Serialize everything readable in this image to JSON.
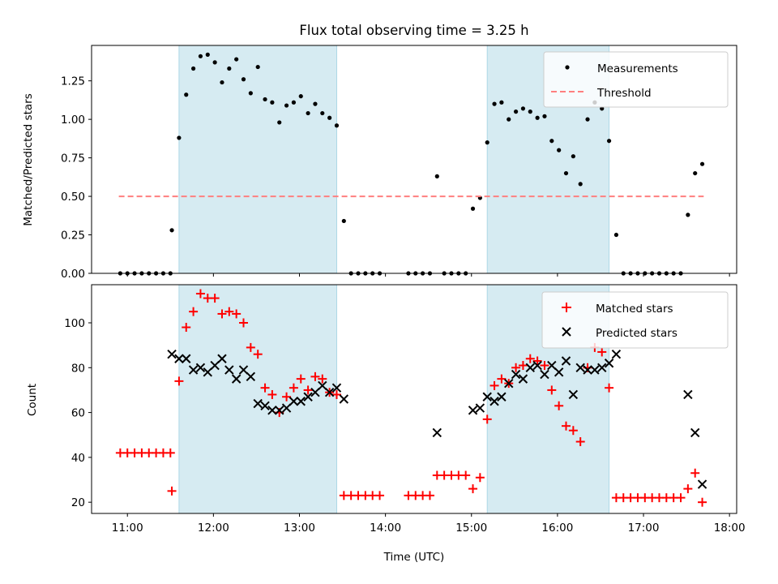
{
  "chart_data": [
    {
      "type": "scatter",
      "title": "Flux total observing time = 3.25 h",
      "xlabel": "",
      "ylabel": "Matched/Predicted stars",
      "xlim": [
        "10:35",
        "18:05"
      ],
      "ylim": [
        0,
        1.48
      ],
      "yticks": [
        "0.00",
        "0.25",
        "0.50",
        "0.75",
        "1.00",
        "1.25"
      ],
      "shaded_intervals": [
        [
          "11:36",
          "13:26"
        ],
        [
          "15:11",
          "16:36"
        ]
      ],
      "legend": {
        "position": "top-right",
        "entries": [
          "Measurements",
          "Threshold"
        ]
      },
      "series": [
        {
          "name": "Measurements",
          "marker": "dot",
          "color": "#000000",
          "points": [
            [
              "10:55",
              0
            ],
            [
              "11:00",
              0
            ],
            [
              "11:05",
              0
            ],
            [
              "11:10",
              0
            ],
            [
              "11:15",
              0
            ],
            [
              "11:20",
              0
            ],
            [
              "11:25",
              0
            ],
            [
              "11:30",
              0
            ],
            [
              "11:31",
              0.28
            ],
            [
              "11:36",
              0.88
            ],
            [
              "11:41",
              1.16
            ],
            [
              "11:46",
              1.33
            ],
            [
              "11:51",
              1.41
            ],
            [
              "11:56",
              1.42
            ],
            [
              "12:01",
              1.37
            ],
            [
              "12:06",
              1.24
            ],
            [
              "12:11",
              1.33
            ],
            [
              "12:16",
              1.39
            ],
            [
              "12:21",
              1.26
            ],
            [
              "12:26",
              1.17
            ],
            [
              "12:31",
              1.34
            ],
            [
              "12:36",
              1.13
            ],
            [
              "12:41",
              1.11
            ],
            [
              "12:46",
              0.98
            ],
            [
              "12:51",
              1.09
            ],
            [
              "12:56",
              1.11
            ],
            [
              "13:01",
              1.15
            ],
            [
              "13:06",
              1.04
            ],
            [
              "13:11",
              1.1
            ],
            [
              "13:16",
              1.04
            ],
            [
              "13:21",
              1.01
            ],
            [
              "13:26",
              0.96
            ],
            [
              "13:31",
              0.34
            ],
            [
              "13:36",
              0
            ],
            [
              "13:41",
              0
            ],
            [
              "13:46",
              0
            ],
            [
              "13:51",
              0
            ],
            [
              "13:56",
              0
            ],
            [
              "14:16",
              0
            ],
            [
              "14:21",
              0
            ],
            [
              "14:26",
              0
            ],
            [
              "14:31",
              0
            ],
            [
              "14:36",
              0.63
            ],
            [
              "14:41",
              0
            ],
            [
              "14:46",
              0
            ],
            [
              "14:51",
              0
            ],
            [
              "14:56",
              0
            ],
            [
              "15:01",
              0.42
            ],
            [
              "15:06",
              0.49
            ],
            [
              "15:11",
              0.85
            ],
            [
              "15:16",
              1.1
            ],
            [
              "15:21",
              1.11
            ],
            [
              "15:26",
              1.0
            ],
            [
              "15:31",
              1.05
            ],
            [
              "15:36",
              1.07
            ],
            [
              "15:41",
              1.05
            ],
            [
              "15:46",
              1.01
            ],
            [
              "15:51",
              1.02
            ],
            [
              "15:56",
              0.86
            ],
            [
              "16:01",
              0.8
            ],
            [
              "16:06",
              0.65
            ],
            [
              "16:11",
              0.76
            ],
            [
              "16:16",
              0.58
            ],
            [
              "16:21",
              1.0
            ],
            [
              "16:26",
              1.11
            ],
            [
              "16:31",
              1.07
            ],
            [
              "16:36",
              0.86
            ],
            [
              "16:41",
              0.25
            ],
            [
              "16:46",
              0
            ],
            [
              "16:51",
              0
            ],
            [
              "16:56",
              0
            ],
            [
              "17:01",
              0
            ],
            [
              "17:06",
              0
            ],
            [
              "17:11",
              0
            ],
            [
              "17:16",
              0
            ],
            [
              "17:21",
              0
            ],
            [
              "17:26",
              0
            ],
            [
              "17:31",
              0.38
            ],
            [
              "17:36",
              0.65
            ],
            [
              "17:41",
              0.71
            ]
          ]
        },
        {
          "name": "Threshold",
          "marker": "dashed-line",
          "color": "#ff7f7f",
          "points": [
            [
              "10:54",
              0.5
            ],
            [
              "17:42",
              0.5
            ]
          ]
        }
      ]
    },
    {
      "type": "scatter",
      "title": "",
      "xlabel": "Time (UTC)",
      "ylabel": "Count",
      "xlim": [
        "10:35",
        "18:05"
      ],
      "ylim": [
        15,
        117
      ],
      "yticks": [
        "20",
        "40",
        "60",
        "80",
        "100"
      ],
      "xticks": [
        "11:00",
        "12:00",
        "13:00",
        "14:00",
        "15:00",
        "16:00",
        "17:00",
        "18:00"
      ],
      "shaded_intervals": [
        [
          "11:36",
          "13:26"
        ],
        [
          "15:11",
          "16:36"
        ]
      ],
      "legend": {
        "position": "top-right",
        "entries": [
          "Matched stars",
          "Predicted stars"
        ]
      },
      "series": [
        {
          "name": "Matched stars",
          "marker": "plus",
          "color": "#ff0000",
          "points": [
            [
              "10:55",
              42
            ],
            [
              "11:00",
              42
            ],
            [
              "11:05",
              42
            ],
            [
              "11:10",
              42
            ],
            [
              "11:15",
              42
            ],
            [
              "11:20",
              42
            ],
            [
              "11:25",
              42
            ],
            [
              "11:30",
              42
            ],
            [
              "11:31",
              25
            ],
            [
              "11:36",
              74
            ],
            [
              "11:41",
              98
            ],
            [
              "11:46",
              105
            ],
            [
              "11:51",
              113
            ],
            [
              "11:56",
              111
            ],
            [
              "12:01",
              111
            ],
            [
              "12:06",
              104
            ],
            [
              "12:11",
              105
            ],
            [
              "12:16",
              104
            ],
            [
              "12:21",
              100
            ],
            [
              "12:26",
              89
            ],
            [
              "12:31",
              86
            ],
            [
              "12:36",
              71
            ],
            [
              "12:41",
              68
            ],
            [
              "12:46",
              60
            ],
            [
              "12:51",
              67
            ],
            [
              "12:56",
              71
            ],
            [
              "13:01",
              75
            ],
            [
              "13:06",
              70
            ],
            [
              "13:11",
              76
            ],
            [
              "13:16",
              75
            ],
            [
              "13:21",
              69
            ],
            [
              "13:26",
              68
            ],
            [
              "13:31",
              23
            ],
            [
              "13:36",
              23
            ],
            [
              "13:41",
              23
            ],
            [
              "13:46",
              23
            ],
            [
              "13:51",
              23
            ],
            [
              "13:56",
              23
            ],
            [
              "14:16",
              23
            ],
            [
              "14:21",
              23
            ],
            [
              "14:26",
              23
            ],
            [
              "14:31",
              23
            ],
            [
              "14:36",
              32
            ],
            [
              "14:41",
              32
            ],
            [
              "14:46",
              32
            ],
            [
              "14:51",
              32
            ],
            [
              "14:56",
              32
            ],
            [
              "15:01",
              26
            ],
            [
              "15:06",
              31
            ],
            [
              "15:11",
              57
            ],
            [
              "15:16",
              72
            ],
            [
              "15:21",
              75
            ],
            [
              "15:26",
              73
            ],
            [
              "15:31",
              80
            ],
            [
              "15:36",
              81
            ],
            [
              "15:41",
              84
            ],
            [
              "15:46",
              83
            ],
            [
              "15:51",
              81
            ],
            [
              "15:56",
              70
            ],
            [
              "16:01",
              63
            ],
            [
              "16:06",
              54
            ],
            [
              "16:11",
              52
            ],
            [
              "16:16",
              47
            ],
            [
              "16:21",
              80
            ],
            [
              "16:26",
              89
            ],
            [
              "16:31",
              87
            ],
            [
              "16:36",
              71
            ],
            [
              "16:41",
              22
            ],
            [
              "16:46",
              22
            ],
            [
              "16:51",
              22
            ],
            [
              "16:56",
              22
            ],
            [
              "17:01",
              22
            ],
            [
              "17:06",
              22
            ],
            [
              "17:11",
              22
            ],
            [
              "17:16",
              22
            ],
            [
              "17:21",
              22
            ],
            [
              "17:26",
              22
            ],
            [
              "17:31",
              26
            ],
            [
              "17:36",
              33
            ],
            [
              "17:41",
              20
            ]
          ]
        },
        {
          "name": "Predicted stars",
          "marker": "x",
          "color": "#000000",
          "points": [
            [
              "11:31",
              86
            ],
            [
              "11:36",
              84
            ],
            [
              "11:41",
              84
            ],
            [
              "11:46",
              79
            ],
            [
              "11:51",
              80
            ],
            [
              "11:56",
              78
            ],
            [
              "12:01",
              81
            ],
            [
              "12:06",
              84
            ],
            [
              "12:11",
              79
            ],
            [
              "12:16",
              75
            ],
            [
              "12:21",
              79
            ],
            [
              "12:26",
              76
            ],
            [
              "12:31",
              64
            ],
            [
              "12:36",
              63
            ],
            [
              "12:41",
              61
            ],
            [
              "12:46",
              61
            ],
            [
              "12:51",
              62
            ],
            [
              "12:56",
              65
            ],
            [
              "13:01",
              65
            ],
            [
              "13:06",
              67
            ],
            [
              "13:11",
              69
            ],
            [
              "13:16",
              72
            ],
            [
              "13:21",
              69
            ],
            [
              "13:26",
              71
            ],
            [
              "13:31",
              66
            ],
            [
              "14:36",
              51
            ],
            [
              "15:01",
              61
            ],
            [
              "15:06",
              62
            ],
            [
              "15:11",
              67
            ],
            [
              "15:16",
              65
            ],
            [
              "15:21",
              67
            ],
            [
              "15:26",
              73
            ],
            [
              "15:31",
              77
            ],
            [
              "15:36",
              75
            ],
            [
              "15:41",
              80
            ],
            [
              "15:46",
              81
            ],
            [
              "15:51",
              77
            ],
            [
              "15:56",
              81
            ],
            [
              "16:01",
              78
            ],
            [
              "16:06",
              83
            ],
            [
              "16:11",
              68
            ],
            [
              "16:16",
              80
            ],
            [
              "16:21",
              79
            ],
            [
              "16:26",
              79
            ],
            [
              "16:31",
              80
            ],
            [
              "16:36",
              82
            ],
            [
              "16:41",
              86
            ],
            [
              "17:31",
              68
            ],
            [
              "17:36",
              51
            ],
            [
              "17:41",
              28
            ]
          ]
        }
      ]
    }
  ]
}
